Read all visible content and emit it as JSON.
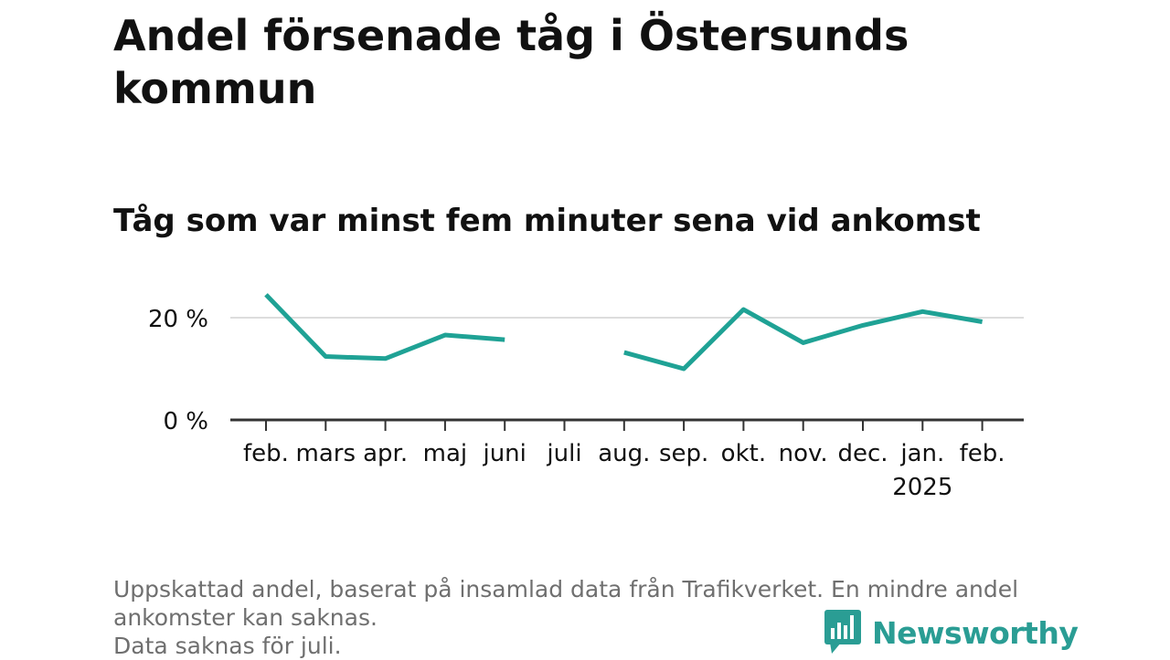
{
  "title": "Andel försenade tåg i Östersunds kommun",
  "subtitle": "Tåg som var minst fem minuter sena vid ankomst",
  "notes": [
    "Uppskattad andel, baserat på insamlad data från Trafikverket. En mindre andel",
    "ankomster kan saknas.",
    "Data saknas för juli."
  ],
  "brand": {
    "name": "Newsworthy",
    "icon": "newsworthy-logo-icon"
  },
  "colors": {
    "line": "#1fa295",
    "axis": "#333333",
    "grid": "#dddddd",
    "text": "#111111",
    "note": "#6f6f6f",
    "brand": "#2a9d94"
  },
  "chart_data": {
    "type": "line",
    "title": "Andel försenade tåg i Östersunds kommun",
    "subtitle": "Tåg som var minst fem minuter sena vid ankomst",
    "xlabel": "",
    "ylabel": "",
    "categories": [
      "feb.",
      "mars",
      "apr.",
      "maj",
      "juni",
      "juli",
      "aug.",
      "sep.",
      "okt.",
      "nov.",
      "dec.",
      "jan.",
      "feb."
    ],
    "category_sublabels": [
      "",
      "",
      "",
      "",
      "",
      "",
      "",
      "",
      "",
      "",
      "",
      "2025",
      ""
    ],
    "series": [
      {
        "values": [
          24.5,
          12.4,
          12.0,
          16.6,
          15.7,
          null,
          13.2,
          10.0,
          21.6,
          15.1,
          18.5,
          21.2,
          19.2
        ]
      }
    ],
    "yticks": [
      0,
      20
    ],
    "ytick_labels": [
      "0 %",
      "20 %"
    ],
    "ylim": [
      0,
      25
    ],
    "grid": "horizontal",
    "legend": "none"
  }
}
